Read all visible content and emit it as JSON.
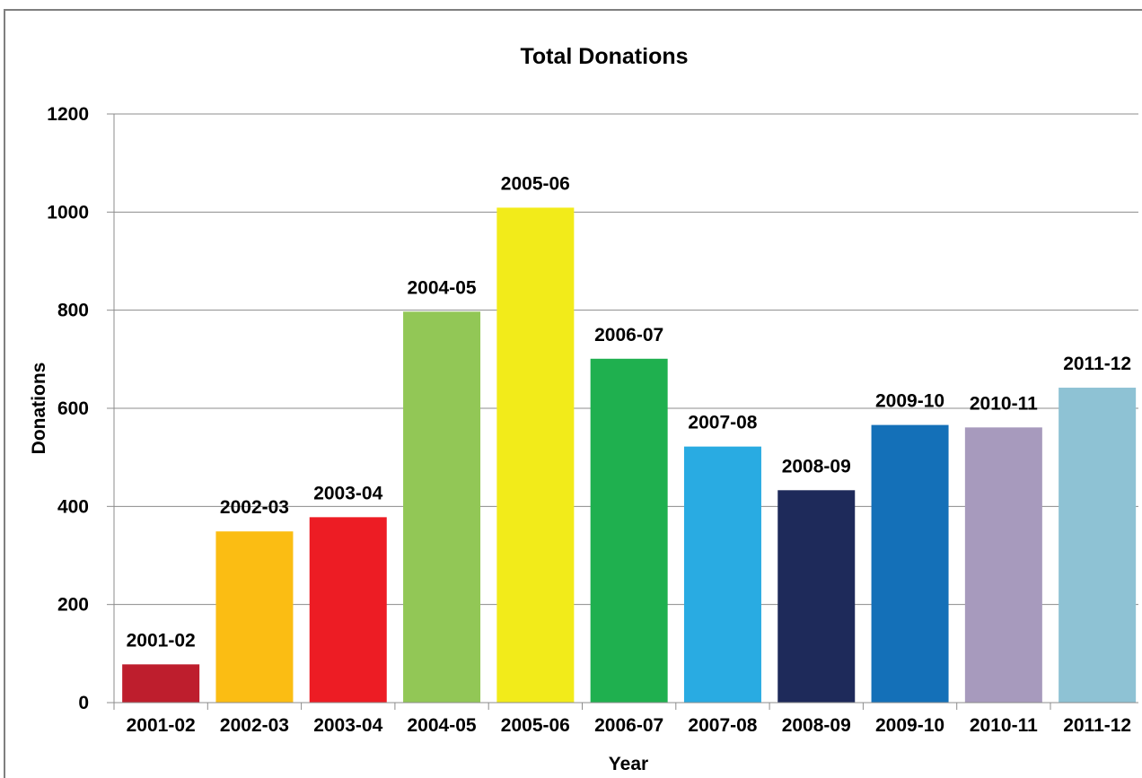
{
  "chart_data": {
    "type": "bar",
    "title": "Total Donations",
    "xlabel": "Year",
    "ylabel": "Donations",
    "ylim": [
      0,
      1200
    ],
    "yticks": [
      0,
      200,
      400,
      600,
      800,
      1000,
      1200
    ],
    "grid": true,
    "legend": "none",
    "categories": [
      "2001-02",
      "2002-03",
      "2003-04",
      "2004-05",
      "2005-06",
      "2006-07",
      "2007-08",
      "2008-09",
      "2009-10",
      "2010-11",
      "2011-12"
    ],
    "values": [
      78,
      349,
      378,
      797,
      1009,
      701,
      522,
      433,
      566,
      561,
      642
    ],
    "data_labels": [
      "2001-02",
      "2002-03",
      "2003-04",
      "2004-05",
      "2005-06",
      "2006-07",
      "2007-08",
      "2008-09",
      "2009-10",
      "2010-11",
      "2011-12"
    ],
    "colors": [
      "#be1e2d",
      "#fbbd13",
      "#ed1c24",
      "#92c756",
      "#f2eb1a",
      "#1fb04f",
      "#29abe2",
      "#1e2a5a",
      "#1470b8",
      "#a79abd",
      "#8ec2d4"
    ]
  }
}
